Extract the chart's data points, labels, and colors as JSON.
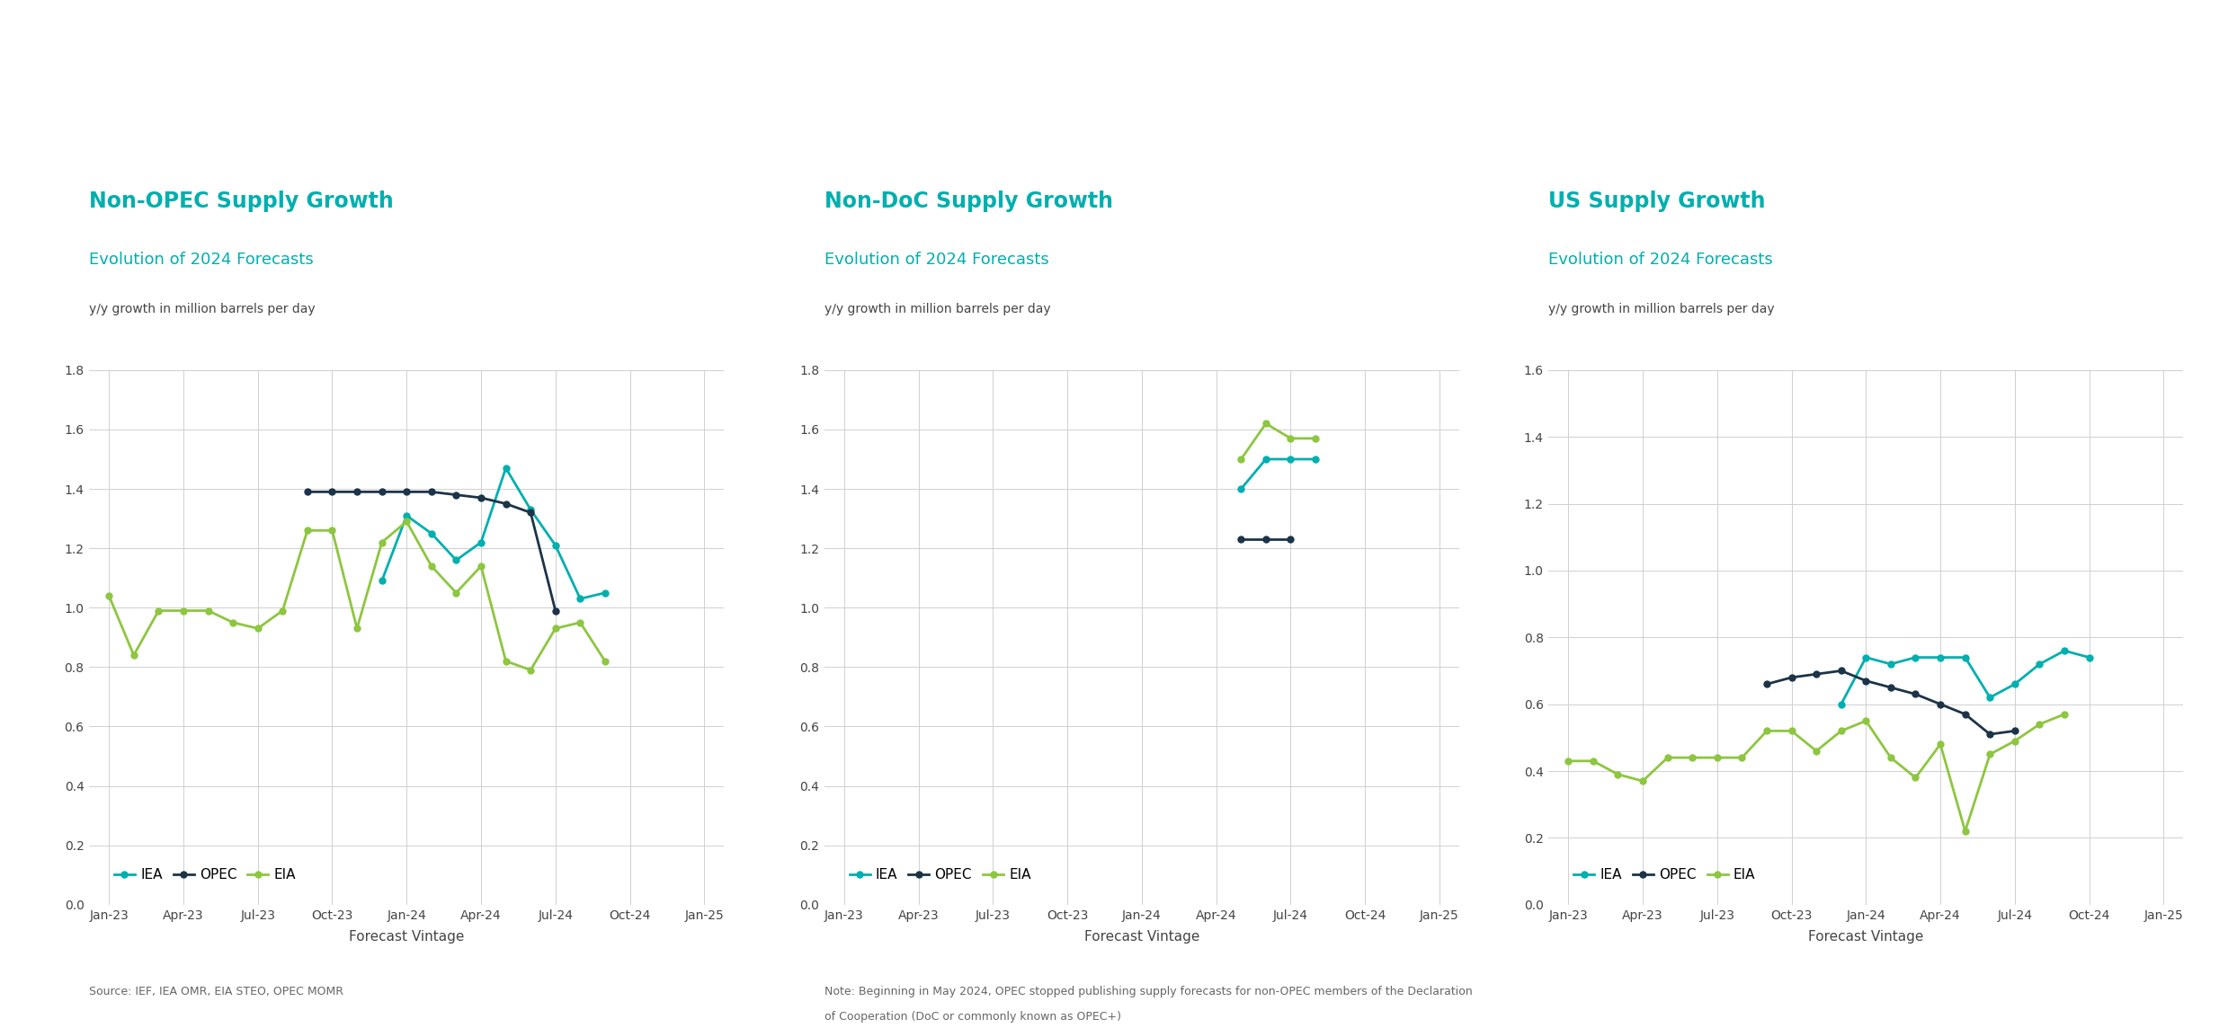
{
  "chart1": {
    "title": "Non-OPEC Supply Growth",
    "subtitle": "Evolution of 2024 Forecasts",
    "ylabel": "y/y growth in million barrels per day",
    "ylim": [
      0.0,
      1.8
    ],
    "yticks": [
      0.0,
      0.2,
      0.4,
      0.6,
      0.8,
      1.0,
      1.2,
      1.4,
      1.6,
      1.8
    ],
    "IEA": {
      "x": [
        11,
        12,
        13,
        14,
        15,
        16,
        17,
        18,
        19,
        20
      ],
      "y": [
        1.09,
        1.31,
        1.25,
        1.16,
        1.22,
        1.47,
        1.33,
        1.21,
        1.03,
        1.05
      ]
    },
    "OPEC": {
      "x": [
        8,
        9,
        10,
        11,
        12,
        13,
        14,
        15,
        16,
        17,
        18
      ],
      "y": [
        1.39,
        1.39,
        1.39,
        1.39,
        1.39,
        1.39,
        1.38,
        1.37,
        1.35,
        1.32,
        0.99
      ]
    },
    "EIA": {
      "x": [
        0,
        1,
        2,
        3,
        4,
        5,
        6,
        7,
        8,
        9,
        10,
        11,
        12,
        13,
        14,
        15,
        16,
        17,
        18,
        19,
        20
      ],
      "y": [
        1.04,
        0.84,
        0.99,
        0.99,
        0.99,
        0.95,
        0.93,
        0.99,
        1.26,
        1.26,
        0.93,
        1.22,
        1.29,
        1.14,
        1.05,
        1.14,
        0.82,
        0.79,
        0.93,
        0.95,
        0.82
      ]
    },
    "source": "Source: IEF, IEA OMR, EIA STEO, OPEC MOMR"
  },
  "chart2": {
    "title": "Non-DoC Supply Growth",
    "subtitle": "Evolution of 2024 Forecasts",
    "ylabel": "y/y growth in million barrels per day",
    "ylim": [
      0.0,
      1.8
    ],
    "yticks": [
      0.0,
      0.2,
      0.4,
      0.6,
      0.8,
      1.0,
      1.2,
      1.4,
      1.6,
      1.8
    ],
    "IEA": {
      "x": [
        16,
        17,
        18,
        19
      ],
      "y": [
        1.4,
        1.5,
        1.5,
        1.5
      ]
    },
    "OPEC": {
      "x": [
        16,
        17,
        18
      ],
      "y": [
        1.23,
        1.23,
        1.23
      ]
    },
    "EIA": {
      "x": [
        16,
        17,
        18,
        19
      ],
      "y": [
        1.5,
        1.62,
        1.57,
        1.57
      ]
    },
    "note_line1": "Note: Beginning in May 2024, OPEC stopped publishing supply forecasts for non-OPEC members of the Declaration",
    "note_line2": "of Cooperation (DoC or commonly known as OPEC+)"
  },
  "chart3": {
    "title": "US Supply Growth",
    "subtitle": "Evolution of 2024 Forecasts",
    "ylabel": "y/y growth in million barrels per day",
    "ylim": [
      0.0,
      1.6
    ],
    "yticks": [
      0.0,
      0.2,
      0.4,
      0.6,
      0.8,
      1.0,
      1.2,
      1.4,
      1.6
    ],
    "IEA": {
      "x": [
        11,
        12,
        13,
        14,
        15,
        16,
        17,
        18,
        19,
        20,
        21
      ],
      "y": [
        0.6,
        0.74,
        0.72,
        0.74,
        0.74,
        0.74,
        0.62,
        0.66,
        0.72,
        0.76,
        0.74
      ]
    },
    "OPEC": {
      "x": [
        8,
        9,
        10,
        11,
        12,
        13,
        14,
        15,
        16,
        17,
        18
      ],
      "y": [
        0.66,
        0.68,
        0.69,
        0.7,
        0.67,
        0.65,
        0.63,
        0.6,
        0.57,
        0.51,
        0.52
      ]
    },
    "EIA": {
      "x": [
        0,
        1,
        2,
        3,
        4,
        5,
        6,
        7,
        8,
        9,
        10,
        11,
        12,
        13,
        14,
        15,
        16,
        17,
        18,
        19,
        20
      ],
      "y": [
        0.43,
        0.43,
        0.39,
        0.37,
        0.44,
        0.44,
        0.44,
        0.44,
        0.52,
        0.52,
        0.46,
        0.52,
        0.55,
        0.44,
        0.38,
        0.48,
        0.22,
        0.45,
        0.49,
        0.54,
        0.57
      ]
    }
  },
  "x_tick_labels": [
    "Jan-23",
    "Apr-23",
    "Jul-23",
    "Oct-23",
    "Jan-24",
    "Apr-24",
    "Jul-24",
    "Oct-24",
    "Jan-25"
  ],
  "x_tick_positions": [
    0,
    3,
    6,
    9,
    12,
    15,
    18,
    21,
    24
  ],
  "colors": {
    "IEA": "#00AFAF",
    "OPEC": "#1C3348",
    "EIA": "#8DC63F",
    "title": "#00AFAF",
    "subtitle": "#00AFAF",
    "grid": "#D0D0D0",
    "background": "#FFFFFF",
    "text": "#444444",
    "source": "#666666"
  },
  "figsize": [
    24.78,
    11.44
  ],
  "dpi": 100
}
